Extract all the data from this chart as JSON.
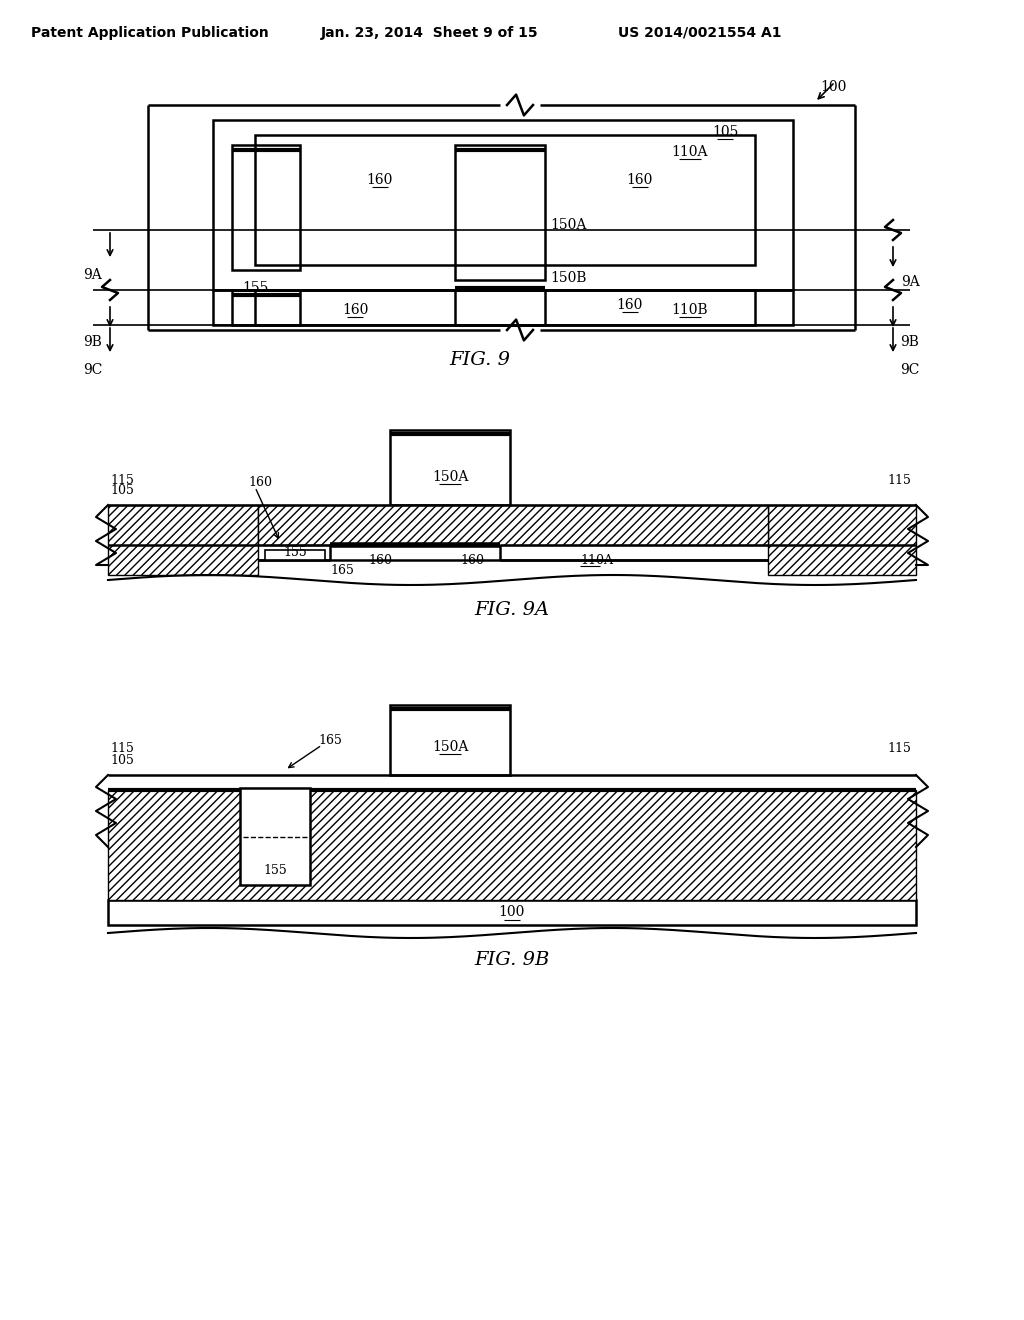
{
  "header_left": "Patent Application Publication",
  "header_mid": "Jan. 23, 2014  Sheet 9 of 15",
  "header_right": "US 2014/0021554 A1",
  "bg_color": "#ffffff"
}
